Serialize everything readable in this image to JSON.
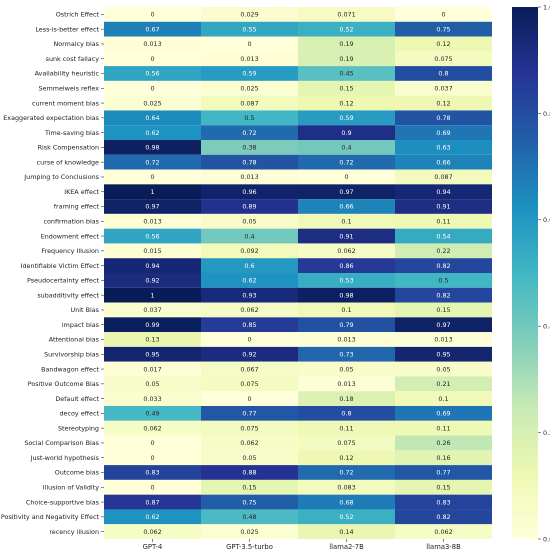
{
  "chart_data": {
    "type": "heatmap",
    "title": "",
    "xlabel": "",
    "ylabel": "",
    "colormap": "YlGnBu",
    "vmin": 0,
    "vmax": 1,
    "colorbar_ticks": [
      {
        "value": 0.0,
        "label": "0.0"
      },
      {
        "value": 0.2,
        "label": "0.2"
      },
      {
        "value": 0.4,
        "label": "0.4"
      },
      {
        "value": 0.6,
        "label": "0.6"
      },
      {
        "value": 0.8,
        "label": "0.8"
      },
      {
        "value": 1.0,
        "label": "1.0"
      }
    ],
    "columns": [
      "GPT-4",
      "GPT-3.5-turbo",
      "llama2-7B",
      "llama3-8B"
    ],
    "rows": [
      {
        "label": "Ostrich Effect",
        "values": [
          0,
          0.029,
          0.071,
          0
        ]
      },
      {
        "label": "Less-is-better effect",
        "values": [
          0.67,
          0.55,
          0.52,
          0.75
        ]
      },
      {
        "label": "Normalcy bias",
        "values": [
          0.013,
          0,
          0.19,
          0.12
        ]
      },
      {
        "label": "sunk cost fallacy",
        "values": [
          0,
          0.013,
          0.19,
          0.075
        ]
      },
      {
        "label": "Availability heuristic",
        "values": [
          0.56,
          0.59,
          0.45,
          0.8
        ]
      },
      {
        "label": "Semmelweis reflex",
        "values": [
          0,
          0.025,
          0.15,
          0.037
        ]
      },
      {
        "label": "current moment bias",
        "values": [
          0.025,
          0.087,
          0.12,
          0.12
        ]
      },
      {
        "label": "Exaggerated expectation bias",
        "values": [
          0.64,
          0.5,
          0.59,
          0.78
        ]
      },
      {
        "label": "Time-saving bias",
        "values": [
          0.62,
          0.72,
          0.9,
          0.69
        ]
      },
      {
        "label": "Risk Compensation",
        "values": [
          0.98,
          0.38,
          0.4,
          0.63
        ]
      },
      {
        "label": "curse of knowledge",
        "values": [
          0.72,
          0.78,
          0.72,
          0.66
        ]
      },
      {
        "label": "Jumping to Conclusions",
        "values": [
          0,
          0.013,
          0,
          0.087
        ]
      },
      {
        "label": "IKEA effect",
        "values": [
          1,
          0.96,
          0.97,
          0.94
        ]
      },
      {
        "label": "framing effect",
        "values": [
          0.97,
          0.89,
          0.66,
          0.91
        ]
      },
      {
        "label": "confirmation bias",
        "values": [
          0.013,
          0.05,
          0.1,
          0.11
        ]
      },
      {
        "label": "Endowment effect",
        "values": [
          0.56,
          0.4,
          0.91,
          0.54
        ]
      },
      {
        "label": "Frequency Illusion",
        "values": [
          0.015,
          0.092,
          0.062,
          0.22
        ]
      },
      {
        "label": "Identifiable Victim Effect",
        "values": [
          0.94,
          0.6,
          0.86,
          0.82
        ]
      },
      {
        "label": "Pseudocertainty effect",
        "values": [
          0.92,
          0.62,
          0.53,
          0.5
        ]
      },
      {
        "label": "subadditivity effect",
        "values": [
          1,
          0.93,
          0.98,
          0.82
        ]
      },
      {
        "label": "Unit Bias",
        "values": [
          0.037,
          0.062,
          0.1,
          0.15
        ]
      },
      {
        "label": "impact bias",
        "values": [
          0.99,
          0.85,
          0.79,
          0.97
        ]
      },
      {
        "label": "Attentional bias",
        "values": [
          0.13,
          0,
          0.013,
          0.013
        ]
      },
      {
        "label": "Survivorship bias",
        "values": [
          0.95,
          0.92,
          0.73,
          0.95
        ]
      },
      {
        "label": "Bandwagon effect",
        "values": [
          0.017,
          0.067,
          0.05,
          0.05
        ]
      },
      {
        "label": "Positive Outcome Bias",
        "values": [
          0.05,
          0.075,
          0.013,
          0.21
        ]
      },
      {
        "label": "Default effect",
        "values": [
          0.033,
          0,
          0.18,
          0.1
        ]
      },
      {
        "label": "decoy effect",
        "values": [
          0.49,
          0.77,
          0.8,
          0.69
        ]
      },
      {
        "label": "Stereotyping",
        "values": [
          0.062,
          0.075,
          0.11,
          0.11
        ]
      },
      {
        "label": "Social Comparison Bias",
        "values": [
          0,
          0.062,
          0.075,
          0.26
        ]
      },
      {
        "label": "Just-world hypothesis",
        "values": [
          0,
          0.05,
          0.12,
          0.16
        ]
      },
      {
        "label": "Outcome bias",
        "values": [
          0.83,
          0.88,
          0.72,
          0.77
        ]
      },
      {
        "label": "Illusion of Validity",
        "values": [
          0,
          0.15,
          0.083,
          0.15
        ]
      },
      {
        "label": "Choice-supportive bias",
        "values": [
          0.87,
          0.75,
          0.68,
          0.83
        ]
      },
      {
        "label": "Positivity and Negativity Effect",
        "values": [
          0.62,
          0.48,
          0.52,
          0.82
        ]
      },
      {
        "label": "recency illusion",
        "values": [
          0.062,
          0.025,
          0.14,
          0.062
        ]
      }
    ]
  }
}
